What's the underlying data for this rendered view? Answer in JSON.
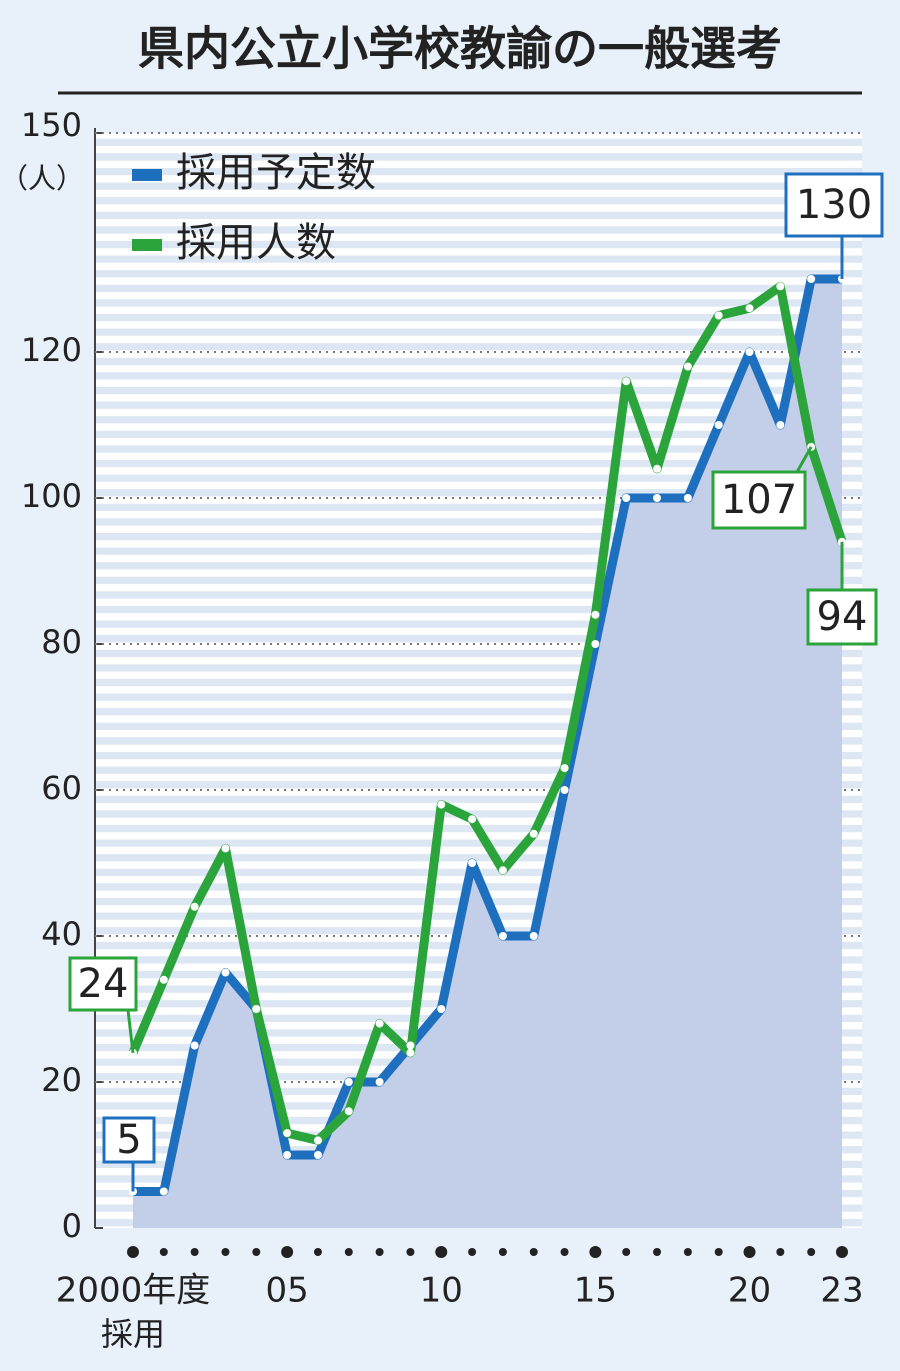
{
  "chart_data": {
    "type": "line",
    "title": "県内公立小学校教諭の一般選考",
    "ylabel": "（人）",
    "categories": [
      "2000年度",
      null,
      null,
      null,
      null,
      "05",
      null,
      null,
      null,
      null,
      "10",
      null,
      null,
      null,
      null,
      "15",
      null,
      null,
      null,
      null,
      "20",
      null,
      null,
      "23"
    ],
    "x_sublabel": "採用",
    "series": [
      {
        "name": "採用予定数",
        "color": "#1f6fbf",
        "values": [
          5,
          5,
          25,
          35,
          30,
          10,
          10,
          20,
          20,
          25,
          30,
          50,
          40,
          40,
          60,
          80,
          100,
          100,
          100,
          110,
          120,
          110,
          130,
          130
        ]
      },
      {
        "name": "採用人数",
        "color": "#2ba43c",
        "values": [
          24,
          34,
          44,
          52,
          30,
          13,
          12,
          16,
          28,
          24,
          58,
          56,
          49,
          54,
          63,
          84,
          116,
          104,
          118,
          125,
          126,
          129,
          107,
          94
        ]
      }
    ],
    "area_color": "#c3cfe8",
    "ylim": [
      0,
      150
    ],
    "yticks": [
      0,
      20,
      40,
      60,
      80,
      100,
      120,
      150
    ],
    "grid": true,
    "legend": "upper left"
  }
}
